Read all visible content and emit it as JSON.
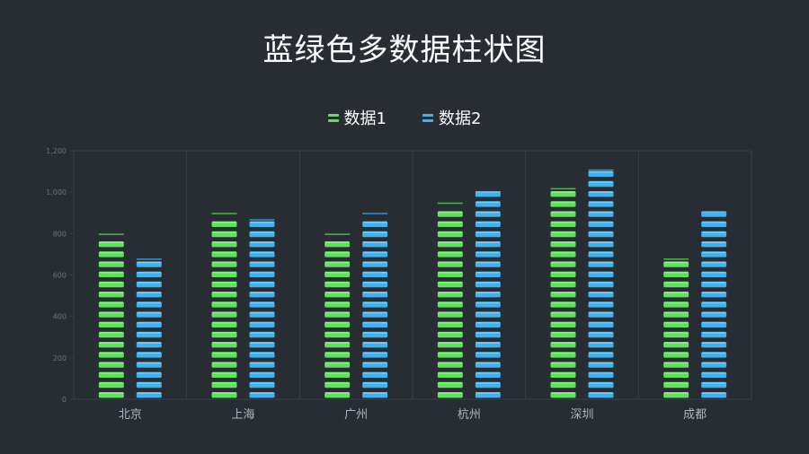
{
  "title": "蓝绿色多数据柱状图",
  "colors": {
    "series1": "#5de25a",
    "series2": "#3fb3ef",
    "background": "#282c33",
    "grid": "#3a3f48",
    "tick": "#6c727c",
    "category": "#b0b5bd"
  },
  "chart_data": {
    "type": "bar",
    "title": "蓝绿色多数据柱状图",
    "categories": [
      "北京",
      "上海",
      "广州",
      "杭州",
      "深圳",
      "成都"
    ],
    "series": [
      {
        "name": "数据1",
        "values": [
          800,
          900,
          800,
          950,
          1020,
          680
        ]
      },
      {
        "name": "数据2",
        "values": [
          680,
          870,
          900,
          1005,
          1110,
          905
        ]
      }
    ],
    "ylim": [
      0,
      1200
    ],
    "yticks": [
      "0",
      "200",
      "400",
      "600",
      "800",
      "1,000",
      "1,200"
    ],
    "grid": true,
    "legend_position": "top-center"
  }
}
